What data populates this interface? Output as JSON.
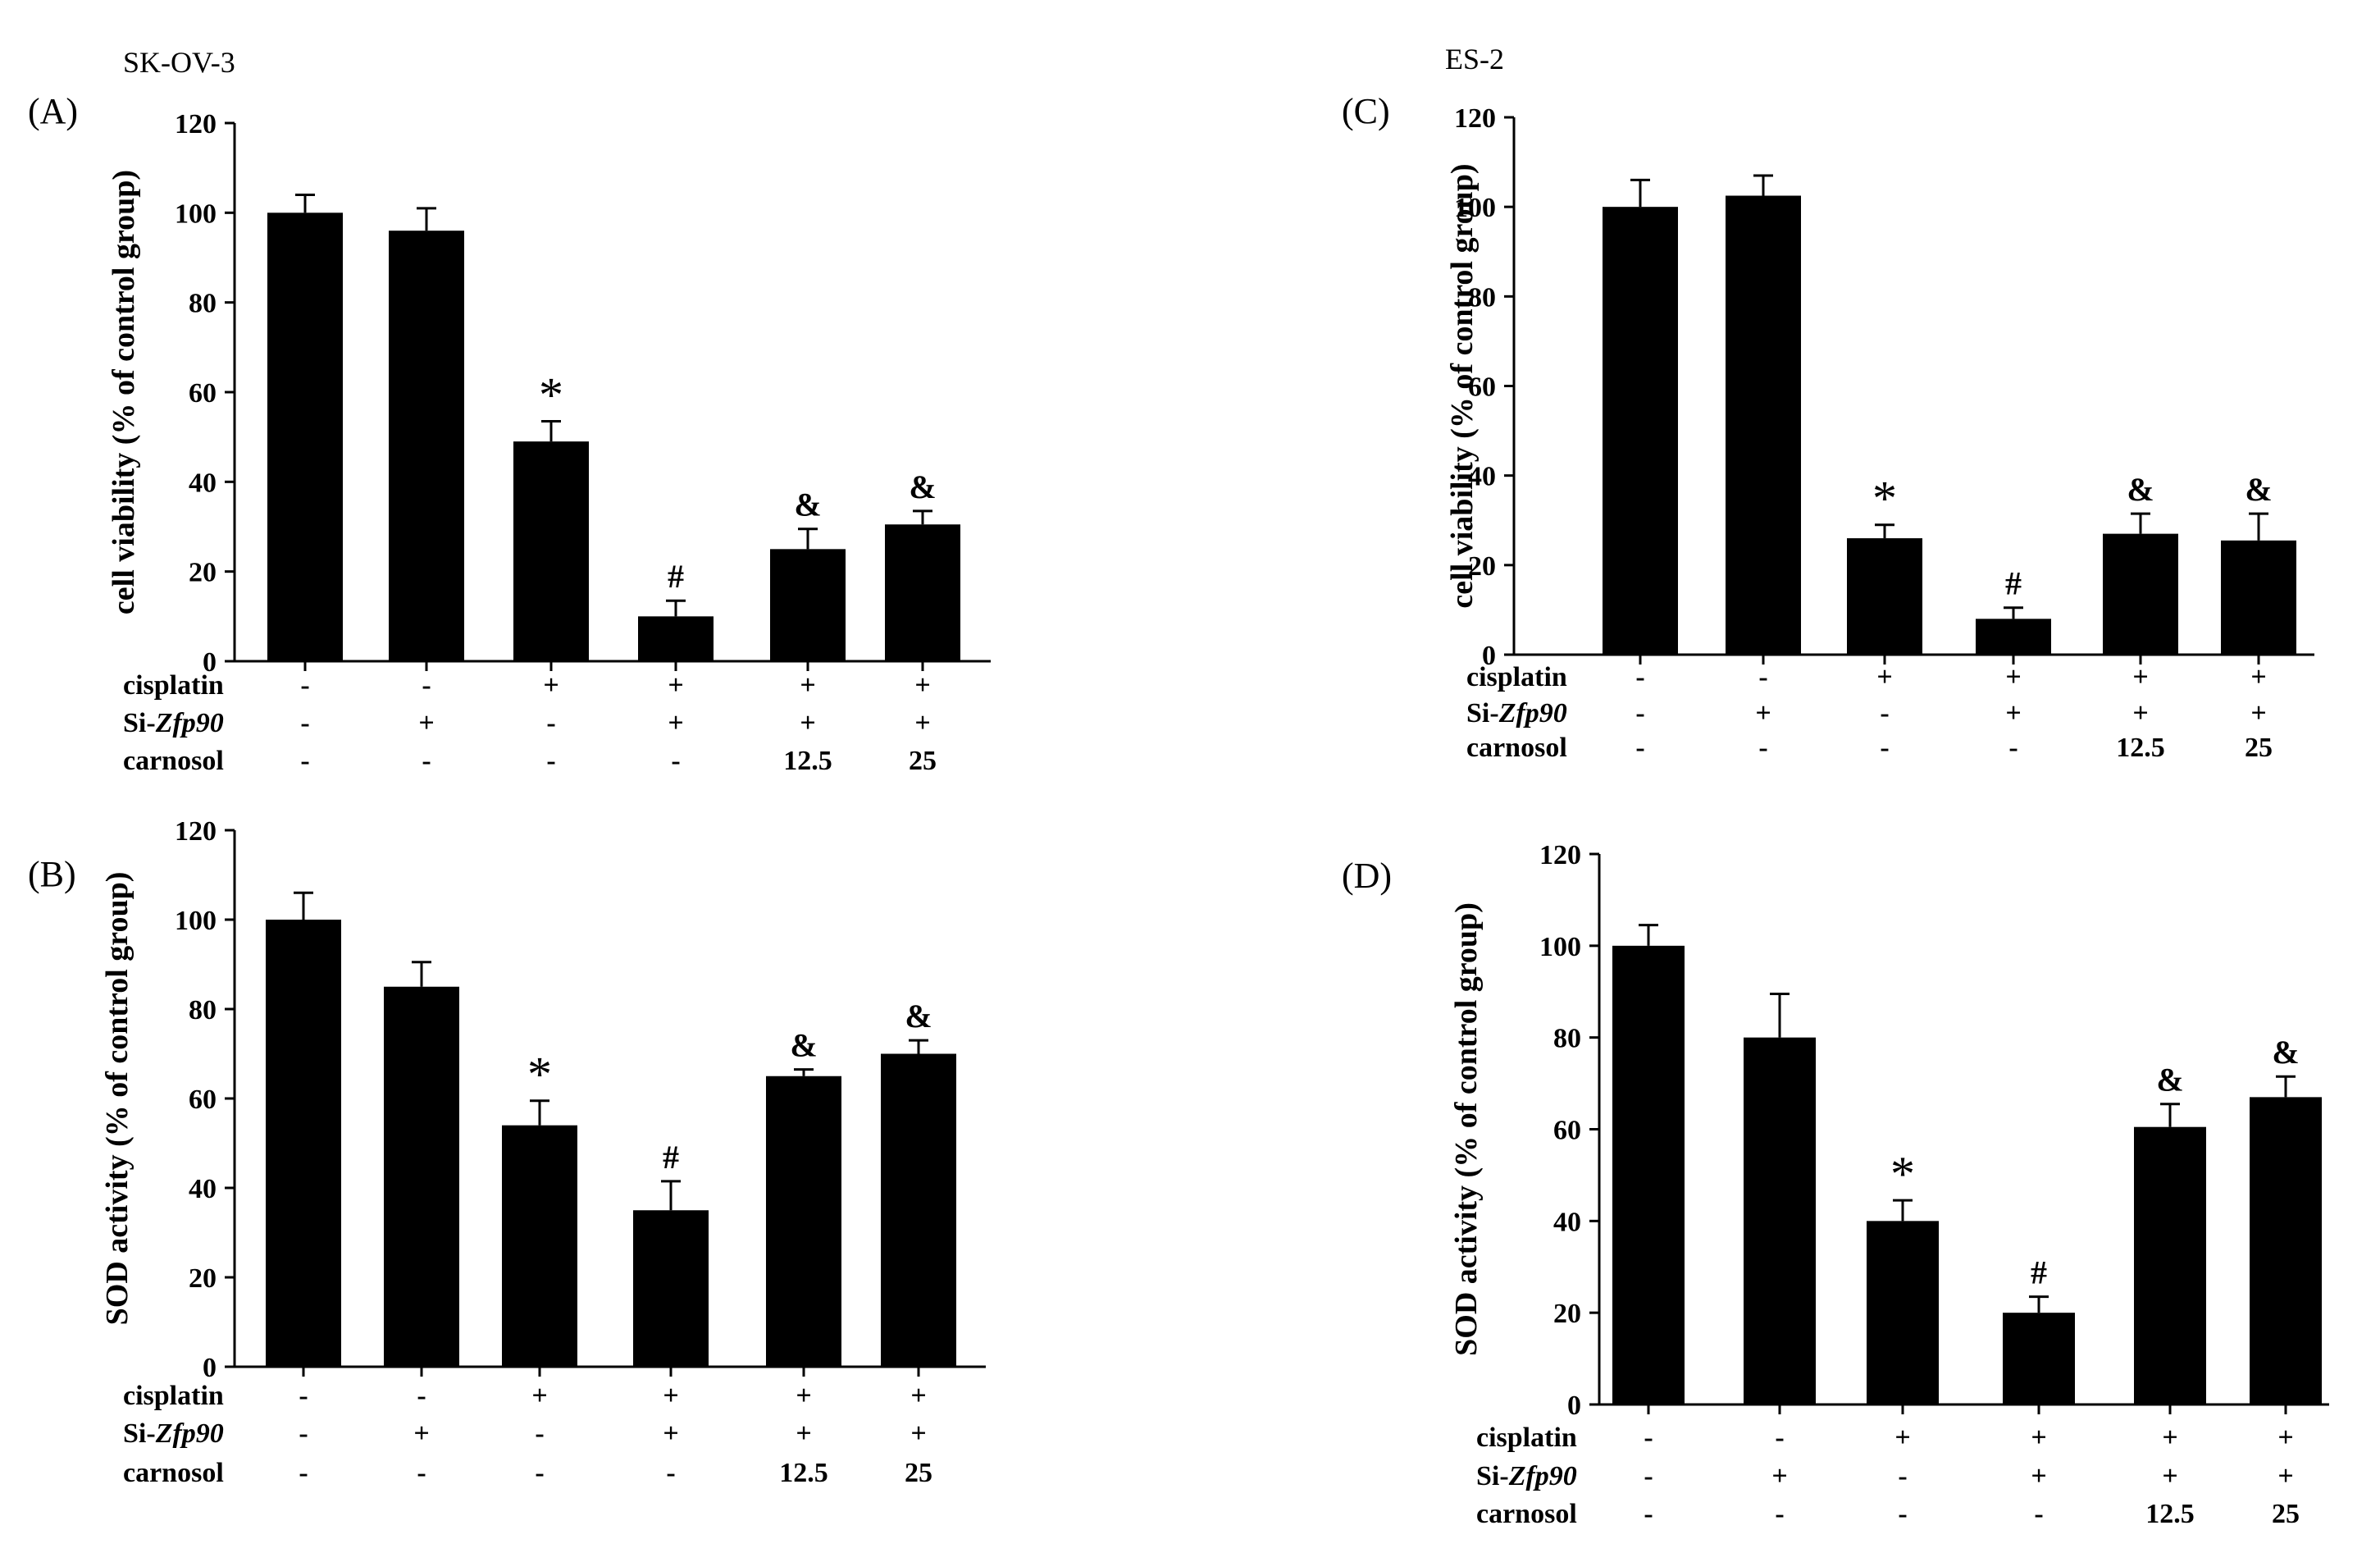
{
  "cell_lines": {
    "left": "SK-OV-3",
    "right": "ES-2"
  },
  "conditions": {
    "row_labels": [
      {
        "key": "cisplatin",
        "prefix": "cisplatin",
        "italic": ""
      },
      {
        "key": "si",
        "prefix": "Si-",
        "italic": "Zfp90"
      },
      {
        "key": "carnosol",
        "prefix": "carnosol",
        "italic": ""
      }
    ],
    "values": {
      "cisplatin": [
        "-",
        "-",
        "+",
        "+",
        "+",
        "+"
      ],
      "si": [
        "-",
        "+",
        "-",
        "+",
        "+",
        "+"
      ],
      "carnosol": [
        "-",
        "-",
        "-",
        "-",
        "12.5",
        "25"
      ]
    }
  },
  "chart_data": [
    {
      "id": "A",
      "panel_label": "(A)",
      "cell_line": "SK-OV-3",
      "type": "bar",
      "title": "",
      "xlabel": "",
      "ylabel": "cell viability (% of control group)",
      "ylim": [
        0,
        120
      ],
      "yticks": [
        0,
        20,
        40,
        60,
        80,
        100,
        120
      ],
      "ytick_labels": [
        "0",
        "20",
        "40",
        "60",
        "80",
        "100",
        "120"
      ],
      "values": [
        100,
        96,
        49,
        10,
        25,
        30.5
      ],
      "errors": [
        4,
        5,
        4.5,
        3.5,
        4.5,
        3
      ],
      "markers": [
        "",
        "",
        "*",
        "#",
        "&",
        "&"
      ]
    },
    {
      "id": "B",
      "panel_label": "(B)",
      "cell_line": "SK-OV-3",
      "type": "bar",
      "title": "",
      "xlabel": "",
      "ylabel": "SOD activity (% of control group)",
      "ylim": [
        0,
        120
      ],
      "yticks": [
        0,
        20,
        40,
        60,
        80,
        100,
        120
      ],
      "ytick_labels": [
        "0",
        "20",
        "40",
        "60",
        "80",
        "100",
        "120"
      ],
      "values": [
        100,
        85,
        54,
        35,
        65,
        70
      ],
      "errors": [
        6,
        5.5,
        5.5,
        6.5,
        1.5,
        3
      ],
      "markers": [
        "",
        "",
        "*",
        "#",
        "&",
        "&"
      ]
    },
    {
      "id": "C",
      "panel_label": "(C)",
      "cell_line": "ES-2",
      "type": "bar",
      "title": "",
      "xlabel": "",
      "ylabel": "cell viability (% of control group)",
      "ylim": [
        0,
        120
      ],
      "yticks": [
        0,
        20,
        40,
        60,
        80,
        100,
        120
      ],
      "ytick_labels": [
        "0",
        "20",
        "40",
        "60",
        "80",
        "100",
        "120"
      ],
      "values": [
        100,
        102.5,
        26,
        8,
        27,
        25.5
      ],
      "errors": [
        6,
        4.5,
        3,
        2.5,
        4.5,
        6
      ],
      "markers": [
        "",
        "",
        "*",
        "#",
        "&",
        "&"
      ]
    },
    {
      "id": "D",
      "panel_label": "(D)",
      "cell_line": "ES-2",
      "type": "bar",
      "title": "",
      "xlabel": "",
      "ylabel": "SOD activity (% of control group)",
      "ylim": [
        0,
        120
      ],
      "yticks": [
        0,
        20,
        40,
        60,
        80,
        100,
        120
      ],
      "ytick_labels": [
        "0",
        "20",
        "40",
        "60",
        "80",
        "100",
        "120"
      ],
      "values": [
        100,
        80,
        40,
        20,
        60.5,
        67
      ],
      "errors": [
        4.5,
        9.5,
        4.5,
        3.5,
        5,
        4.5
      ],
      "markers": [
        "",
        "",
        "*",
        "#",
        "&",
        "&"
      ]
    }
  ]
}
